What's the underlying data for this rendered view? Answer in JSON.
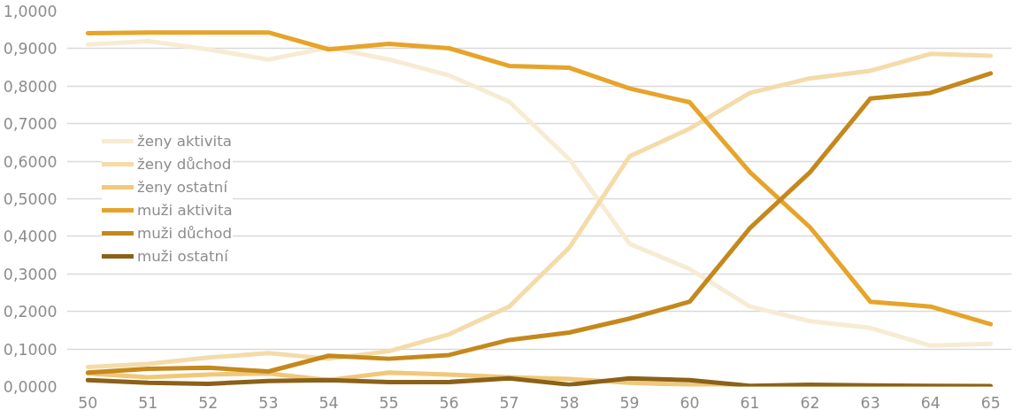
{
  "chart_data": {
    "type": "line",
    "categories": [
      "50",
      "51",
      "52",
      "53",
      "54",
      "55",
      "56",
      "57",
      "58",
      "59",
      "60",
      "61",
      "62",
      "63",
      "64",
      "65"
    ],
    "series": [
      {
        "name": "ženy aktivita",
        "color": "#f8ebd3",
        "values": [
          0.911,
          0.92,
          0.898,
          0.871,
          0.903,
          0.871,
          0.829,
          0.759,
          0.605,
          0.38,
          0.313,
          0.213,
          0.174,
          0.156,
          0.109,
          0.114
        ]
      },
      {
        "name": "ženy důchod",
        "color": "#f4dba9",
        "values": [
          0.052,
          0.06,
          0.077,
          0.089,
          0.074,
          0.094,
          0.139,
          0.213,
          0.37,
          0.613,
          0.687,
          0.782,
          0.821,
          0.841,
          0.886,
          0.881
        ]
      },
      {
        "name": "ženy ostatní",
        "color": "#f0c87a",
        "values": [
          0.035,
          0.025,
          0.032,
          0.035,
          0.017,
          0.037,
          0.032,
          0.025,
          0.02,
          0.01,
          0.005,
          0.0,
          0.0,
          0.0,
          0.0,
          0.0
        ]
      },
      {
        "name": "muži aktivita",
        "color": "#e6a42a",
        "values": [
          0.941,
          0.943,
          0.943,
          0.943,
          0.898,
          0.913,
          0.901,
          0.854,
          0.849,
          0.794,
          0.757,
          0.571,
          0.424,
          0.226,
          0.213,
          0.166
        ]
      },
      {
        "name": "muži důchod",
        "color": "#c4881c",
        "values": [
          0.037,
          0.047,
          0.05,
          0.04,
          0.082,
          0.074,
          0.084,
          0.124,
          0.144,
          0.181,
          0.226,
          0.422,
          0.571,
          0.767,
          0.782,
          0.834
        ]
      },
      {
        "name": "muži ostatní",
        "color": "#8b6119",
        "values": [
          0.017,
          0.01,
          0.007,
          0.015,
          0.017,
          0.012,
          0.012,
          0.022,
          0.005,
          0.022,
          0.017,
          0.002,
          0.005,
          0.003,
          0.002,
          0.001
        ]
      }
    ],
    "ylim": [
      0,
      1
    ],
    "yticks": [
      {
        "value": 0,
        "label": "0,0000"
      },
      {
        "value": 0.1,
        "label": "0,1000"
      },
      {
        "value": 0.2,
        "label": "0,2000"
      },
      {
        "value": 0.3,
        "label": "0,3000"
      },
      {
        "value": 0.4,
        "label": "0,4000"
      },
      {
        "value": 0.5,
        "label": "0,5000"
      },
      {
        "value": 0.6,
        "label": "0,6000"
      },
      {
        "value": 0.7,
        "label": "0,7000"
      },
      {
        "value": 0.8,
        "label": "0,8000"
      },
      {
        "value": 0.9,
        "label": "0,9000"
      },
      {
        "value": 1,
        "label": "1,0000"
      }
    ],
    "grid": "y",
    "legend": "left",
    "marker": "none",
    "line_style": "solid"
  }
}
